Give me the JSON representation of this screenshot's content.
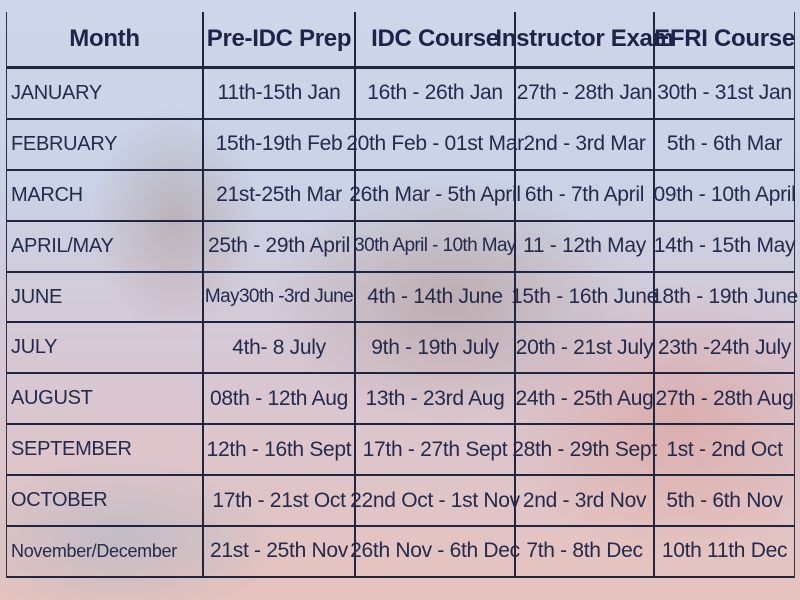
{
  "table": {
    "headers": [
      "Month",
      "Pre-IDC Prep",
      "IDC Course",
      "Instructor Exam",
      "EFRI Course"
    ],
    "rows": [
      [
        "JANUARY",
        "11th-15th Jan",
        "16th - 26th Jan",
        "27th - 28th Jan",
        "30th - 31st Jan"
      ],
      [
        "FEBRUARY",
        "15th-19th Feb",
        "20th Feb - 01st Mar",
        "2nd - 3rd Mar",
        "5th - 6th Mar"
      ],
      [
        "MARCH",
        "21st-25th Mar",
        "26th Mar - 5th April",
        "6th - 7th April",
        "09th - 10th April"
      ],
      [
        "APRIL/MAY",
        "25th - 29th April",
        "30th April - 10th May",
        "11 - 12th May",
        "14th - 15th May"
      ],
      [
        "JUNE",
        "May30th -3rd June",
        "4th - 14th June",
        "15th - 16th June",
        "18th - 19th June"
      ],
      [
        "JULY",
        "4th- 8 July",
        "9th - 19th July",
        "20th - 21st July",
        "23th -24th July"
      ],
      [
        "AUGUST",
        "08th - 12th Aug",
        "13th - 23rd Aug",
        "24th - 25th Aug",
        "27th - 28th Aug"
      ],
      [
        "SEPTEMBER",
        "12th - 16th Sept",
        "17th - 27th Sept",
        "28th - 29th Sept",
        "1st - 2nd Oct"
      ],
      [
        "OCTOBER",
        "17th - 21st Oct",
        "22nd Oct - 1st Nov",
        "2nd - 3rd Nov",
        "5th - 6th Nov"
      ],
      [
        "November/December",
        "21st - 25th Nov",
        "26th Nov - 6th Dec",
        "7th - 8th Dec",
        "10th 11th Dec"
      ]
    ]
  },
  "colors": {
    "text": "#232a4c",
    "grid_lines": "#1f2740",
    "background_top": "#cfd6ea",
    "background_bottom": "#e7c3bd"
  }
}
